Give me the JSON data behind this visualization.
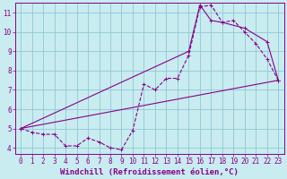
{
  "xlabel": "Windchill (Refroidissement éolien,°C)",
  "bg_color": "#c8ecf0",
  "line_color": "#880088",
  "grid_color": "#90c8d4",
  "xlim": [
    -0.5,
    23.5
  ],
  "ylim": [
    3.7,
    11.5
  ],
  "xticks": [
    0,
    1,
    2,
    3,
    4,
    5,
    6,
    7,
    8,
    9,
    10,
    11,
    12,
    13,
    14,
    15,
    16,
    17,
    18,
    19,
    20,
    21,
    22,
    23
  ],
  "yticks": [
    4,
    5,
    6,
    7,
    8,
    9,
    10,
    11
  ],
  "line1_x": [
    0,
    1,
    2,
    3,
    4,
    5,
    6,
    7,
    8,
    9,
    10,
    11,
    12,
    13,
    14,
    15,
    16,
    17,
    18,
    19,
    20,
    21,
    22,
    23
  ],
  "line1_y": [
    5.0,
    4.8,
    4.7,
    4.7,
    4.1,
    4.1,
    4.5,
    4.3,
    4.0,
    3.9,
    4.9,
    7.3,
    7.0,
    7.6,
    7.6,
    8.8,
    11.3,
    11.4,
    10.5,
    10.6,
    10.0,
    9.4,
    8.6,
    7.5
  ],
  "line2_x": [
    0,
    23
  ],
  "line2_y": [
    5.0,
    7.5
  ],
  "line3_x": [
    0,
    15,
    16,
    17,
    18,
    20,
    22,
    23
  ],
  "line3_y": [
    5.0,
    9.0,
    11.4,
    10.6,
    10.5,
    10.2,
    9.5,
    7.5
  ],
  "fontsize_label": 6.5,
  "fontsize_tick": 5.5
}
